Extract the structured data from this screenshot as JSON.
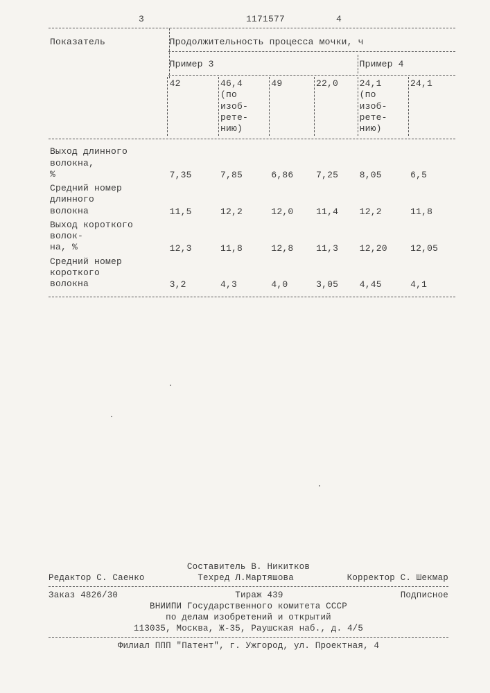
{
  "doc_number": "1171577",
  "page_left_num": "3",
  "page_right_num": "4",
  "table": {
    "indicator_header": "Показатель",
    "duration_header": "Продолжительность процесса мочки, ч",
    "example3_label": "Пример 3",
    "example4_label": "Пример 4",
    "col_headers": [
      "42",
      "46,4\n(по\nизоб-\nрете-\nнию)",
      "49",
      "22,0",
      "24,1\n(по\nизоб-\nрете-\nнию)",
      "24,1"
    ],
    "rows": [
      {
        "label": "Выход длинного волокна,\n%",
        "values": [
          "7,35",
          "7,85",
          "6,86",
          "7,25",
          "8,05",
          "6,5"
        ]
      },
      {
        "label": "Средний номер длинного\nволокна",
        "values": [
          "11,5",
          "12,2",
          "12,0",
          "11,4",
          "12,2",
          "11,8"
        ]
      },
      {
        "label": "Выход короткого волок-\nна, %",
        "values": [
          "12,3",
          "11,8",
          "12,8",
          "11,3",
          "12,20",
          "12,05"
        ]
      },
      {
        "label": "Средний номер короткого\nволокна",
        "values": [
          "3,2",
          "4,3",
          "4,0",
          "3,05",
          "4,45",
          "4,1"
        ]
      }
    ]
  },
  "footer": {
    "compiler": "Составитель В. Никитков",
    "editor": "Редактор С. Саенко",
    "techred": "Техред Л.Мартяшова",
    "corrector": "Корректор С. Шекмар",
    "order": "Заказ 4826/30",
    "tirage": "Тираж 439",
    "subscription": "Подписное",
    "org1": "ВНИИПИ Государственного комитета СССР",
    "org2": "по делам изобретений и открытий",
    "address1": "113035, Москва, Ж-35, Раушская наб., д. 4/5",
    "filial": "Филиал ППП \"Патент\", г. Ужгород, ул. Проектная, 4"
  },
  "colors": {
    "bg": "#f6f4f0",
    "fg": "#3a3a3a",
    "dash": "#555555"
  }
}
